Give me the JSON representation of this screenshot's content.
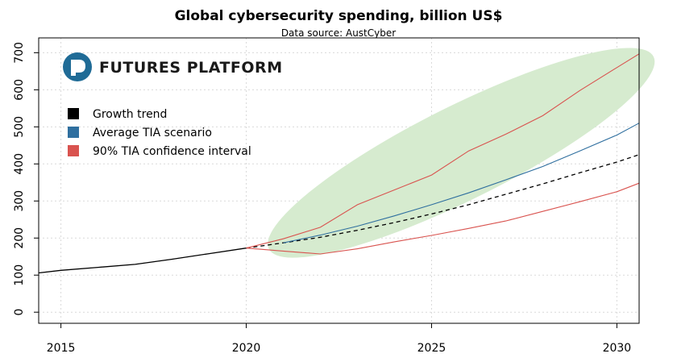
{
  "chart_data": {
    "type": "line",
    "title": "Global cybersecurity spending, billion US$",
    "subtitle": "Data source: AustCyber",
    "xlabel": "",
    "ylabel": "",
    "xlim": [
      2014.4,
      2030.6
    ],
    "ylim": [
      -30,
      740
    ],
    "x_ticks": [
      2015,
      2020,
      2025,
      2030
    ],
    "y_ticks": [
      0,
      100,
      200,
      300,
      400,
      500,
      600,
      700
    ],
    "grid": true,
    "legend_position": "top-left",
    "logo": {
      "text": "FUTURES PLATFORM",
      "color": "#1f6b96"
    },
    "confidence_region_color": "#d6ebcf",
    "legend": [
      {
        "label": "Growth trend",
        "color": "#000000"
      },
      {
        "label": "Average TIA scenario",
        "color": "#2f6f9f"
      },
      {
        "label": "90% TIA confidence interval",
        "color": "#d9534f"
      }
    ],
    "series": [
      {
        "name": "Growth trend",
        "color": "#000000",
        "style": "solid",
        "x": [
          2014.4,
          2015,
          2016,
          2017,
          2018,
          2019,
          2020
        ],
        "y": [
          106,
          113,
          121,
          129,
          143,
          158,
          173
        ]
      },
      {
        "name": "Growth trend",
        "color": "#000000",
        "style": "dashed",
        "x": [
          2020,
          2021,
          2022,
          2023,
          2024,
          2025,
          2026,
          2027,
          2028,
          2029,
          2030,
          2030.6
        ],
        "y": [
          173,
          187,
          202,
          221,
          242,
          265,
          290,
          318,
          346,
          376,
          405,
          425
        ]
      },
      {
        "name": "Average TIA scenario",
        "color": "#2f6f9f",
        "style": "solid",
        "x": [
          2021,
          2022,
          2023,
          2024,
          2025,
          2026,
          2027,
          2028,
          2029,
          2030,
          2030.6
        ],
        "y": [
          187,
          208,
          232,
          260,
          290,
          322,
          357,
          393,
          435,
          478,
          510
        ]
      },
      {
        "name": "90% TIA confidence interval",
        "color": "#d9534f",
        "style": "solid",
        "x": [
          2020,
          2021,
          2022,
          2023,
          2024,
          2025,
          2026,
          2027,
          2028,
          2029,
          2030,
          2030.6
        ],
        "y": [
          173,
          198,
          229,
          290,
          330,
          370,
          435,
          480,
          530,
          598,
          660,
          697
        ]
      },
      {
        "name": "90% TIA confidence interval",
        "color": "#d9534f",
        "style": "solid",
        "x": [
          2020,
          2021,
          2022,
          2023,
          2024,
          2025,
          2026,
          2027,
          2028,
          2029,
          2030,
          2030.6
        ],
        "y": [
          173,
          165,
          157,
          171,
          190,
          207,
          226,
          246,
          272,
          298,
          325,
          348
        ]
      }
    ]
  }
}
